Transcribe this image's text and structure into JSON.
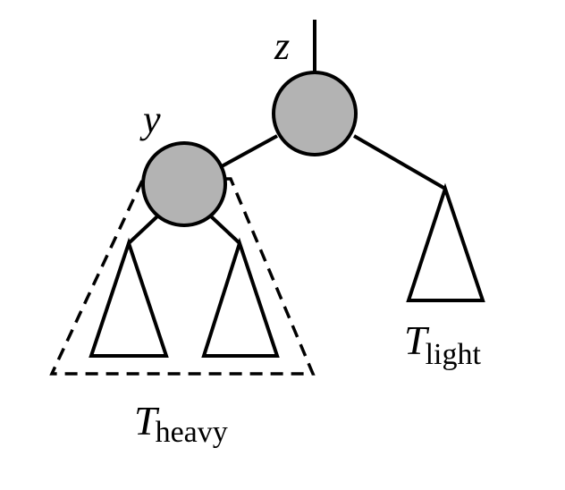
{
  "nodes": {
    "z": {
      "label": "z"
    },
    "y": {
      "label": "y"
    }
  },
  "subtrees": {
    "heavy": {
      "symbol": "T",
      "subscript": "heavy"
    },
    "light": {
      "symbol": "T",
      "subscript": "light"
    }
  },
  "colors": {
    "node_fill": "#b3b3b3",
    "stroke": "#000000",
    "background": "#ffffff"
  }
}
